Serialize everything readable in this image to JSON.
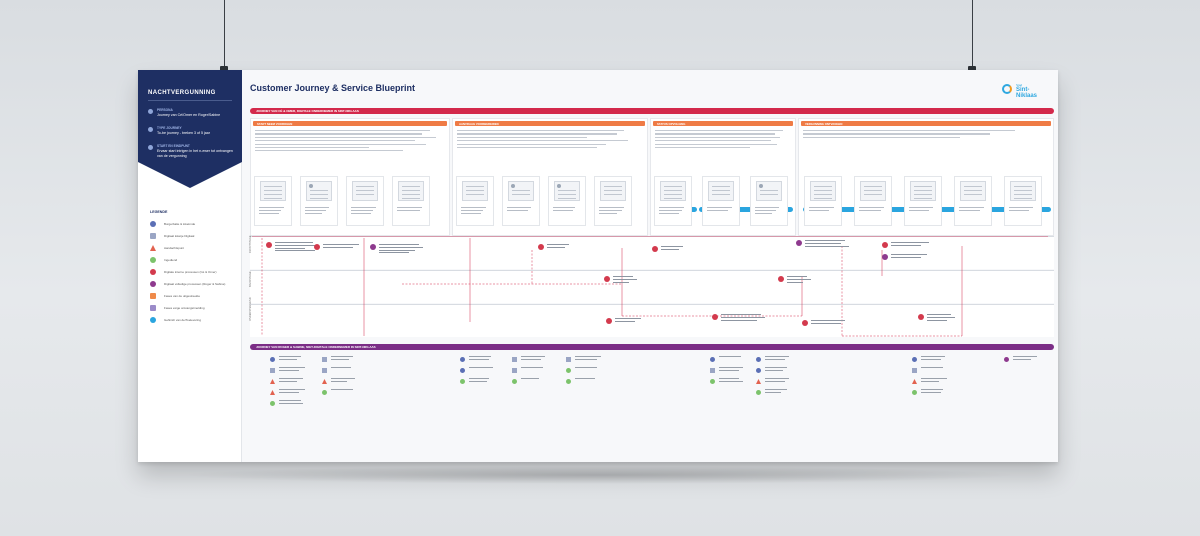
{
  "title": "Customer Journey & Service Blueprint",
  "logo": {
    "small": "Stad",
    "big": "Sint-Niklaas"
  },
  "sidebar": {
    "heading": "NACHTVERGUNNING",
    "items": [
      {
        "label": "PERSONA",
        "value": "Journey van Cé/Omer en Roger/Sabine"
      },
      {
        "label": "TYPE JOURNEY",
        "value": "To-be journey - breken 3 of 5 jaar"
      },
      {
        "label": "START EN EINDPUNT",
        "value": "Ervaar start intrigen in het n-ewer tot ontvangen van de vergunning"
      }
    ]
  },
  "legend": {
    "title": "LEGENDE",
    "items": [
      {
        "label": "Burgerbalie & loketmde",
        "color": "#5b6fb5"
      },
      {
        "label": "Digitaal loketje Digitaal",
        "color": "#9aa5c4"
      },
      {
        "label": "Aandachtspunt",
        "color": "#e2624f"
      },
      {
        "label": "Ingediend",
        "color": "#7cc36b"
      },
      {
        "label": "Digitale interne processen (Cé & Omer)",
        "color": "#d33a4d"
      },
      {
        "label": "Digitaal volledige processen (Roger & Sabine)",
        "color": "#8e3a8e"
      },
      {
        "label": "Fases van de uitgestreekte",
        "color": "#ef8a4a"
      },
      {
        "label": "Fases exige ontvangstmelding",
        "color": "#9b8bc9"
      },
      {
        "label": "Gefinish van de/Toelevering",
        "color": "#2aa5df"
      }
    ]
  },
  "journey_top": "JOURNEY VAN CÉ & OMER, DIGITALE ONDERNEMER IN SINT-NIKLAAS",
  "journey_bottom": "JOURNEY VAN ROGER & SABINE, NIET-DIGITALE ONDERNEMER IN SINT-NIKLAAS",
  "phases": [
    {
      "label": "START NEEM VOOROGEN",
      "color": "#ef7b45"
    },
    {
      "label": "AANVRAAG VOORBEREIDEN",
      "color": "#ef7b45"
    },
    {
      "label": "STATUS OPVOLGING",
      "color": "#ef7b45"
    },
    {
      "label": "VERGUNNING ONTVANGEN",
      "color": "#ef7b45"
    }
  ],
  "subphases": [
    {
      "label": "AANVULLINGEN",
      "color": "#2aa5df"
    },
    {
      "label": "IN BEHANDELING",
      "color": "#2aa5df"
    },
    {
      "label": "ONDERTEKENING",
      "color": "#2aa5df"
    }
  ],
  "lanes": [
    "FRONTSTAGE",
    "BACKSTAGE",
    "ONDERSTEUNEND"
  ],
  "colors": {
    "navy": "#1e2f63",
    "journey_red": "#d3294b",
    "journey_purple": "#7b2d86"
  }
}
